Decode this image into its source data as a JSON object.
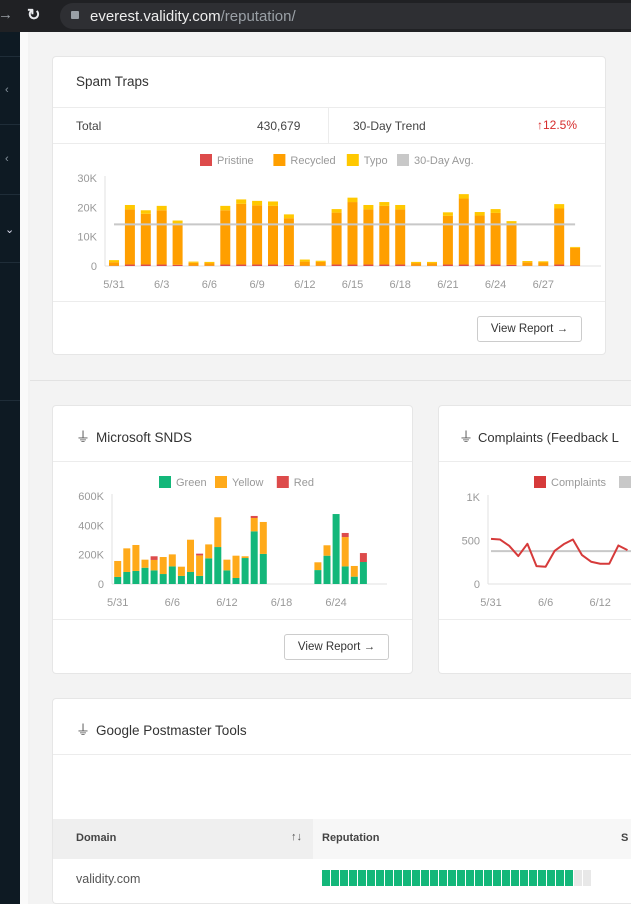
{
  "browser": {
    "url_host": "everest.validity.com",
    "url_path": "/reputation/",
    "icons": [
      "forward-arrow-icon",
      "reload-icon",
      "lock-icon"
    ]
  },
  "sidebar": {
    "icons": [
      "chevron-left-icon",
      "chevron-left-icon",
      "chevron-down-icon"
    ]
  },
  "colors": {
    "pristine": "#dd4b4b",
    "recycled": "#ff9f00",
    "typo": "#ffc800",
    "avg": "#c8c8c8",
    "green": "#13b77a",
    "yellow": "#ffaa1a",
    "red": "#dd4b4b",
    "complaints": "#d63a3a",
    "trend_up": "#d62b2b"
  },
  "spam_traps": {
    "title": "Spam Traps",
    "total_label": "Total",
    "total_value": "430,679",
    "trend_label": "30-Day Trend",
    "trend_value": "12.5%",
    "trend_direction": "up",
    "view_report": "View Report"
  },
  "snds": {
    "title": "Microsoft SNDS",
    "view_report": "View Report"
  },
  "complaints": {
    "title": "Complaints (Feedback L"
  },
  "postmaster": {
    "title": "Google Postmaster Tools",
    "columns": [
      "Domain",
      "Reputation",
      "S"
    ],
    "rows": [
      {
        "domain": "validity.com",
        "reputation_fraction": 0.93
      }
    ]
  },
  "chart_data": [
    {
      "type": "bar",
      "stacked": true,
      "legend": [
        "Pristine",
        "Recycled",
        "Typo",
        "30-Day Avg."
      ],
      "legend_placement": "top",
      "yticks": [
        "0",
        "10K",
        "20K",
        "30K"
      ],
      "ylim": [
        0,
        30000
      ],
      "xticks": [
        "5/31",
        "6/3",
        "6/6",
        "6/9",
        "6/12",
        "6/15",
        "6/18",
        "6/21",
        "6/24",
        "6/27"
      ],
      "categories": [
        "5/31",
        "6/1",
        "6/2",
        "6/3",
        "6/4",
        "6/5",
        "6/6",
        "6/7",
        "6/8",
        "6/9",
        "6/10",
        "6/11",
        "6/12",
        "6/13",
        "6/14",
        "6/15",
        "6/16",
        "6/17",
        "6/18",
        "6/19",
        "6/20",
        "6/21",
        "6/22",
        "6/23",
        "6/24",
        "6/25",
        "6/26",
        "6/27",
        "6/28",
        "6/29"
      ],
      "series": [
        {
          "name": "Pristine",
          "values": [
            100,
            500,
            500,
            500,
            400,
            100,
            100,
            500,
            500,
            500,
            500,
            400,
            100,
            100,
            500,
            500,
            500,
            500,
            500,
            100,
            100,
            500,
            500,
            500,
            500,
            400,
            100,
            100,
            500,
            200
          ]
        },
        {
          "name": "Recycled",
          "values": [
            1200,
            18800,
            17300,
            18500,
            13900,
            1000,
            900,
            18500,
            20700,
            20200,
            20000,
            15900,
            1400,
            1300,
            17700,
            21300,
            18800,
            20000,
            18800,
            900,
            900,
            16600,
            22500,
            16700,
            17600,
            13900,
            1200,
            1100,
            19100,
            6000
          ]
        },
        {
          "name": "Typo",
          "values": [
            700,
            1500,
            1200,
            1500,
            1200,
            400,
            400,
            1500,
            1500,
            1500,
            1500,
            1300,
            700,
            400,
            1200,
            1500,
            1500,
            1300,
            1500,
            400,
            400,
            1200,
            1500,
            1200,
            1300,
            1000,
            400,
            400,
            1500,
            300
          ]
        }
      ],
      "avg_line": 14200
    },
    {
      "type": "bar",
      "stacked": true,
      "legend": [
        "Green",
        "Yellow",
        "Red"
      ],
      "legend_placement": "top",
      "yticks": [
        "0",
        "200K",
        "400K",
        "600K"
      ],
      "ylim": [
        0,
        600000
      ],
      "xticks": [
        "5/31",
        "6/6",
        "6/12",
        "6/18",
        "6/24"
      ],
      "categories": [
        "5/31",
        "6/1",
        "6/2",
        "6/3",
        "6/4",
        "6/5",
        "6/6",
        "6/7",
        "6/8",
        "6/9",
        "6/10",
        "6/11",
        "6/12",
        "6/13",
        "6/14",
        "6/15",
        "6/16",
        "6/17",
        "6/18",
        "6/19",
        "6/20",
        "6/21",
        "6/22",
        "6/23",
        "6/24",
        "6/25",
        "6/26",
        "6/27"
      ],
      "series": [
        {
          "name": "Green",
          "values": [
            48000,
            82000,
            89000,
            111000,
            93000,
            68000,
            120000,
            55000,
            82000,
            55000,
            175000,
            252000,
            93000,
            41000,
            177000,
            359000,
            205000,
            null,
            null,
            null,
            null,
            null,
            95000,
            193000,
            477000,
            120000,
            50000,
            150000
          ]
        },
        {
          "name": "Yellow",
          "values": [
            109000,
            161000,
            177000,
            55000,
            71000,
            116000,
            82000,
            63000,
            220000,
            140000,
            95000,
            203000,
            73000,
            152000,
            12000,
            91000,
            218000,
            null,
            null,
            null,
            null,
            null,
            53000,
            71000,
            0,
            200000,
            73000,
            0
          ]
        },
        {
          "name": "Red",
          "values": [
            0,
            0,
            0,
            0,
            25000,
            0,
            0,
            0,
            0,
            12000,
            0,
            0,
            0,
            0,
            0,
            14000,
            0,
            null,
            null,
            null,
            null,
            null,
            0,
            0,
            0,
            28000,
            0,
            61000
          ]
        }
      ]
    },
    {
      "type": "line",
      "legend": [
        "Complaints"
      ],
      "legend_placement": "top",
      "yticks": [
        "0",
        "500",
        "1K"
      ],
      "ylim": [
        0,
        1000
      ],
      "xticks": [
        "5/31",
        "6/6",
        "6/12"
      ],
      "categories": [
        "5/31",
        "6/1",
        "6/2",
        "6/3",
        "6/4",
        "6/5",
        "6/6",
        "6/7",
        "6/8",
        "6/9",
        "6/10",
        "6/11",
        "6/12",
        "6/13",
        "6/14",
        "6/15"
      ],
      "series": [
        {
          "name": "Complaints",
          "values": [
            519,
            511,
            439,
            321,
            462,
            206,
            198,
            382,
            458,
            511,
            332,
            256,
            233,
            233,
            443,
            389
          ]
        }
      ],
      "avg_line": 378
    }
  ]
}
